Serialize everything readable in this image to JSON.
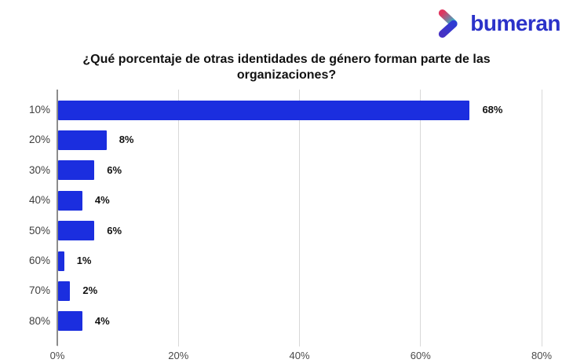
{
  "logo": {
    "text": "bumeran"
  },
  "chart_data": {
    "type": "bar",
    "orientation": "horizontal",
    "title": "¿Qué porcentaje de otras identidades de género forman parte de las organizaciones?",
    "categories": [
      "10%",
      "20%",
      "30%",
      "40%",
      "50%",
      "60%",
      "70%",
      "80%"
    ],
    "values": [
      68,
      8,
      6,
      4,
      6,
      1,
      2,
      4
    ],
    "value_labels": [
      "68%",
      "8%",
      "6%",
      "4%",
      "6%",
      "1%",
      "2%",
      "4%"
    ],
    "x_ticks": [
      "0%",
      "20%",
      "40%",
      "60%",
      "80%"
    ],
    "x_tick_values": [
      0,
      20,
      40,
      60,
      80
    ],
    "xlim": [
      0,
      85
    ],
    "ylabel": "",
    "xlabel": "",
    "grid": true,
    "legend": false
  },
  "colors": {
    "bar": "#1B2EDF",
    "gridline": "#D8D8D8",
    "axis": "#8C8C8C",
    "title": "#111111",
    "category_label": "#3F3F3F",
    "tick_label": "#4A4A4A",
    "value_label": "#111111",
    "logo_text": "#2B32C9",
    "logo_pink": "#E0355F",
    "logo_teal": "#23BCD4",
    "logo_blue": "#2E3BD3",
    "logo_purple": "#4732C4"
  }
}
